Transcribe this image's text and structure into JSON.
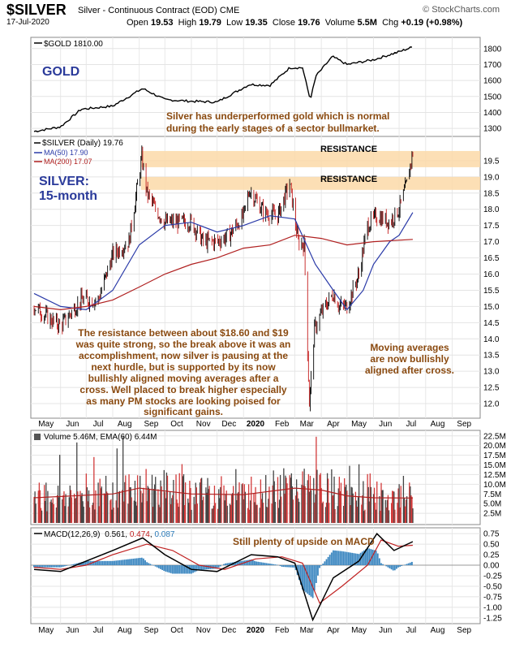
{
  "header": {
    "symbol": "$SILVER",
    "description": "Silver - Continuous Contract (EOD) CME",
    "date": "17-Jul-2020",
    "source": "© StockCharts.com",
    "open_label": "Open",
    "open": "19.53",
    "high_label": "High",
    "high": "19.79",
    "low_label": "Low",
    "low": "19.35",
    "close_label": "Close",
    "close": "19.76",
    "volume_label": "Volume",
    "volume": "5.5M",
    "chg_label": "Chg",
    "chg": "+0.19 (+0.98%)"
  },
  "panels": {
    "gold": {
      "legend": "$GOLD 1810.00",
      "title": "GOLD",
      "note_line1": "Silver has underperformed gold which is normal",
      "note_line2": "during the early stages of a sector bullmarket."
    },
    "silver": {
      "legend_price": "$SILVER (Daily) 19.76",
      "legend_ma50": "MA(50) 17.90",
      "legend_ma200": "MA(200) 17.07",
      "title_line1": "SILVER:",
      "title_line2": "15-month",
      "resistance_label": "RESISTANCE",
      "note_left": [
        "The resistance between about $18.60 and $19",
        "was quite strong, so the break above it was an",
        "accomplishment, now silver is pausing at the",
        "next hurdle, but is supported by its now",
        "bullishly aligned moving averages after a",
        "cross. Well placed to break higher especially",
        "as many PM stocks are looking poised for",
        "significant gains."
      ],
      "note_right": [
        "Moving averages",
        "are now bullishly",
        "aligned after cross."
      ]
    },
    "volume": {
      "legend_label": "Volume 5.46M, EMA(60) 6.44M"
    },
    "macd": {
      "legend_label": "MACD(12,26,9)",
      "macd_value": "0.561",
      "signal_value": "0.474",
      "hist_value": "0.087",
      "note": "Still plenty of upside on MACD"
    }
  },
  "chart_data": [
    {
      "type": "line",
      "name": "gold",
      "series": [
        {
          "name": "$GOLD",
          "x": [
            "2019-05-01",
            "2019-06-01",
            "2019-06-25",
            "2019-08-01",
            "2019-09-05",
            "2019-10-01",
            "2019-11-01",
            "2019-12-01",
            "2020-01-08",
            "2020-02-01",
            "2020-02-24",
            "2020-03-10",
            "2020-03-19",
            "2020-03-26",
            "2020-04-14",
            "2020-05-01",
            "2020-06-01",
            "2020-07-01",
            "2020-07-17"
          ],
          "values": [
            1281,
            1310,
            1420,
            1440,
            1550,
            1480,
            1470,
            1465,
            1575,
            1570,
            1680,
            1680,
            1480,
            1630,
            1750,
            1700,
            1730,
            1780,
            1810
          ]
        }
      ],
      "yticks": [
        1300,
        1400,
        1500,
        1600,
        1700,
        1800
      ],
      "ylim": [
        1260,
        1860
      ]
    },
    {
      "type": "line",
      "name": "silver",
      "x_ticks": [
        "May",
        "Jun",
        "Jul",
        "Aug",
        "Sep",
        "Oct",
        "Nov",
        "Dec",
        "2020",
        "Feb",
        "Mar",
        "Apr",
        "May",
        "Jun",
        "Jul",
        "Aug",
        "Sep"
      ],
      "yticks": [
        12.0,
        12.5,
        13.0,
        13.5,
        14.0,
        14.5,
        15.0,
        15.5,
        16.0,
        16.5,
        17.0,
        17.5,
        18.0,
        18.5,
        19.0,
        19.5
      ],
      "ylim": [
        11.6,
        20.2
      ],
      "resistance_zones": [
        [
          19.3,
          19.8
        ],
        [
          18.6,
          19.0
        ]
      ],
      "series": [
        {
          "name": "$SILVER",
          "x": [
            "2019-05-01",
            "2019-05-20",
            "2019-06-01",
            "2019-06-25",
            "2019-07-15",
            "2019-08-01",
            "2019-08-20",
            "2019-09-04",
            "2019-09-10",
            "2019-09-20",
            "2019-10-01",
            "2019-10-20",
            "2019-11-01",
            "2019-11-15",
            "2019-12-01",
            "2019-12-15",
            "2020-01-01",
            "2020-01-08",
            "2020-01-25",
            "2020-02-10",
            "2020-02-24",
            "2020-03-05",
            "2020-03-12",
            "2020-03-18",
            "2020-03-24",
            "2020-04-01",
            "2020-04-15",
            "2020-04-22",
            "2020-05-01",
            "2020-05-15",
            "2020-05-25",
            "2020-06-05",
            "2020-06-20",
            "2020-07-01",
            "2020-07-10",
            "2020-07-17"
          ],
          "values": [
            15.0,
            14.6,
            14.4,
            15.2,
            15.2,
            16.6,
            17.0,
            19.6,
            18.5,
            18.0,
            17.6,
            17.6,
            17.6,
            17.0,
            17.0,
            17.2,
            17.8,
            18.6,
            17.9,
            17.8,
            18.8,
            17.0,
            16.9,
            12.0,
            14.3,
            14.8,
            15.4,
            15.0,
            15.0,
            16.0,
            17.5,
            17.8,
            17.6,
            18.0,
            18.8,
            19.76
          ]
        },
        {
          "name": "MA(50)",
          "x": [
            "2019-05-01",
            "2019-06-01",
            "2019-07-01",
            "2019-08-01",
            "2019-09-01",
            "2019-10-01",
            "2019-11-01",
            "2019-12-01",
            "2020-01-01",
            "2020-02-01",
            "2020-03-01",
            "2020-03-25",
            "2020-04-15",
            "2020-05-01",
            "2020-05-20",
            "2020-06-01",
            "2020-06-20",
            "2020-07-01",
            "2020-07-17"
          ],
          "values": [
            15.4,
            15.0,
            14.9,
            15.5,
            16.9,
            17.5,
            17.6,
            17.3,
            17.5,
            17.8,
            17.7,
            16.3,
            15.5,
            14.9,
            15.5,
            16.3,
            17.0,
            17.2,
            17.9
          ]
        },
        {
          "name": "MA(200)",
          "x": [
            "2019-05-01",
            "2019-06-01",
            "2019-07-01",
            "2019-08-01",
            "2019-09-01",
            "2019-10-01",
            "2019-11-01",
            "2019-12-01",
            "2020-01-01",
            "2020-02-01",
            "2020-03-01",
            "2020-04-01",
            "2020-05-01",
            "2020-06-01",
            "2020-07-17"
          ],
          "values": [
            15.0,
            14.9,
            15.0,
            15.2,
            15.6,
            16.0,
            16.3,
            16.5,
            16.8,
            16.9,
            17.2,
            17.1,
            16.9,
            17.0,
            17.07
          ]
        }
      ]
    },
    {
      "type": "bar",
      "name": "volume",
      "yticks": [
        "2.5M",
        "5.0M",
        "7.5M",
        "10.0M",
        "12.5M",
        "15.0M",
        "17.5M",
        "20.0M",
        "22.5M"
      ],
      "ylim": [
        0,
        23.5
      ],
      "series": [
        {
          "name": "EMA(60)",
          "x": [
            "2019-05-01",
            "2019-08-01",
            "2019-09-01",
            "2019-11-01",
            "2020-01-01",
            "2020-03-01",
            "2020-04-01",
            "2020-05-01",
            "2020-06-01",
            "2020-07-17"
          ],
          "values": [
            6.5,
            7.5,
            9.0,
            7.5,
            7.3,
            9.0,
            8.5,
            7.0,
            6.5,
            6.44
          ]
        }
      ]
    },
    {
      "type": "line",
      "name": "macd",
      "yticks": [
        -1.25,
        -1.0,
        -0.75,
        -0.5,
        -0.25,
        0.0,
        0.25,
        0.5,
        0.75
      ],
      "ylim": [
        -1.35,
        0.85
      ],
      "series": [
        {
          "name": "MACD",
          "x": [
            "2019-05-01",
            "2019-06-01",
            "2019-07-01",
            "2019-08-01",
            "2019-09-05",
            "2019-10-01",
            "2019-11-01",
            "2019-12-01",
            "2020-01-10",
            "2020-02-10",
            "2020-03-01",
            "2020-03-22",
            "2020-04-15",
            "2020-05-15",
            "2020-06-05",
            "2020-06-25",
            "2020-07-17"
          ],
          "values": [
            -0.1,
            -0.15,
            0.1,
            0.35,
            0.65,
            0.25,
            -0.1,
            -0.15,
            0.25,
            0.2,
            0.05,
            -1.3,
            -0.3,
            0.1,
            0.75,
            0.35,
            0.561
          ]
        },
        {
          "name": "Signal",
          "x": [
            "2019-05-01",
            "2019-06-01",
            "2019-07-01",
            "2019-08-01",
            "2019-09-10",
            "2019-10-10",
            "2019-11-10",
            "2019-12-10",
            "2020-01-15",
            "2020-02-15",
            "2020-03-10",
            "2020-03-30",
            "2020-04-25",
            "2020-05-25",
            "2020-06-10",
            "2020-06-30",
            "2020-07-17"
          ],
          "values": [
            -0.05,
            -0.1,
            0.0,
            0.25,
            0.5,
            0.35,
            0.0,
            -0.1,
            0.15,
            0.2,
            0.05,
            -0.9,
            -0.5,
            0.0,
            0.6,
            0.45,
            0.474
          ]
        }
      ]
    }
  ]
}
